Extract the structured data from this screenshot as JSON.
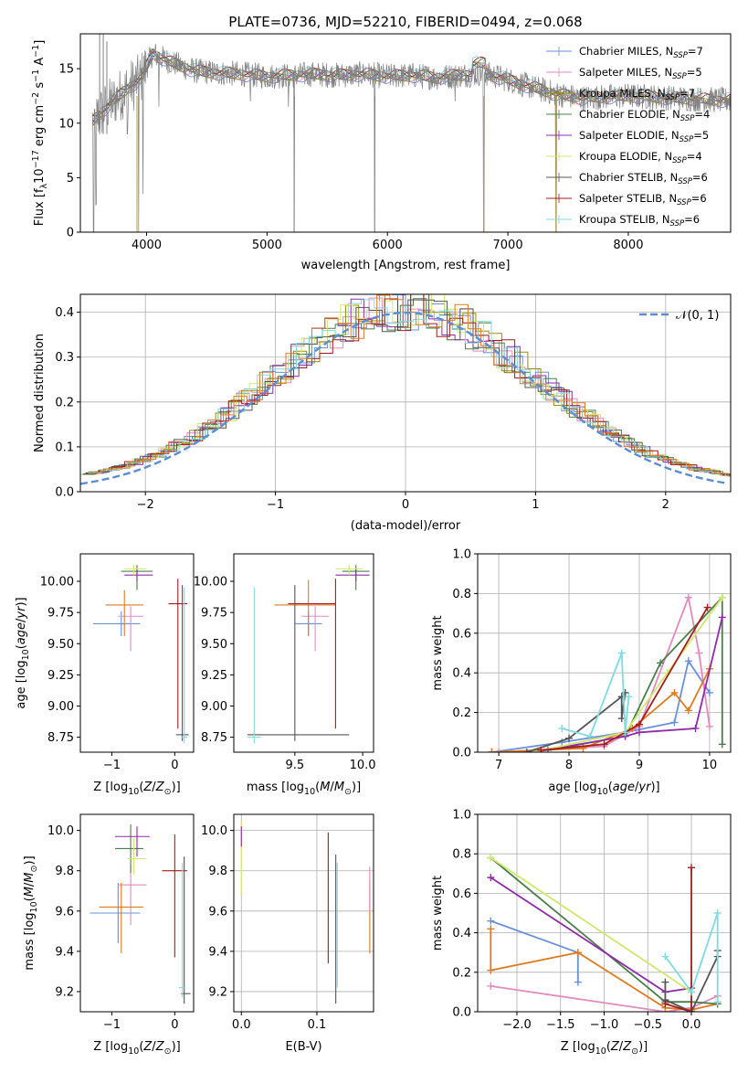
{
  "title": "PLATE=0736, MJD=52210, FIBERID=0494, z=0.068",
  "colors": {
    "Chabrier MILES": "#6a8fdc",
    "Salpeter MILES": "#e38ac0",
    "Kroupa MILES": "#9c8f00",
    "Chabrier ELODIE": "#4a7f4a",
    "Salpeter ELODIE": "#8f2aa8",
    "Kroupa ELODIE": "#cfe870",
    "Chabrier STELIB": "#555555",
    "Salpeter STELIB": "#a51c1c",
    "Kroupa STELIB": "#7fdbe0",
    "orange": "#e07a20",
    "data_gray": "#808080",
    "gaussian": "#5b8dd6"
  },
  "chart_data": [
    {
      "id": "spectrum",
      "type": "line",
      "xlabel": "wavelength [Angstrom, rest frame]",
      "ylabel_parts": [
        "Flux [f",
        "λ",
        "10",
        "−17",
        " erg cm",
        "−2",
        " s",
        "−1",
        " A",
        "−1",
        "]"
      ],
      "xlim": [
        3450,
        8850
      ],
      "ylim": [
        0,
        18.2
      ],
      "xticks": [
        4000,
        5000,
        6000,
        7000,
        8000
      ],
      "yticks": [
        0,
        5,
        10,
        15
      ],
      "legend": [
        {
          "label": "Chabrier MILES",
          "n": "7"
        },
        {
          "label": "Salpeter MILES",
          "n": "5"
        },
        {
          "label": "Kroupa MILES",
          "n": "7"
        },
        {
          "label": "Chabrier ELODIE",
          "n": "4"
        },
        {
          "label": "Salpeter ELODIE",
          "n": "5"
        },
        {
          "label": "Kroupa ELODIE",
          "n": "4"
        },
        {
          "label": "Chabrier STELIB",
          "n": "6"
        },
        {
          "label": "Salpeter STELIB",
          "n": "6"
        },
        {
          "label": "Kroupa STELIB",
          "n": "6"
        }
      ],
      "legend_placement": "upper right",
      "legend_nsub": "SSP",
      "data_profile": {
        "x": [
          3550,
          3700,
          3850,
          3950,
          4050,
          4200,
          4400,
          4600,
          4800,
          5000,
          5200,
          5400,
          5600,
          5800,
          6000,
          6200,
          6400,
          6600,
          6800,
          7000,
          7200,
          7400,
          7600,
          7800,
          8000,
          8200,
          8400,
          8600,
          8800
        ],
        "y": [
          10.2,
          11.8,
          13.3,
          14.0,
          16.4,
          15.6,
          14.8,
          14.6,
          14.5,
          14.3,
          14.4,
          14.5,
          14.4,
          14.5,
          14.3,
          14.4,
          14.2,
          14.4,
          14.6,
          14.0,
          13.3,
          12.7,
          12.3,
          12.4,
          12.5,
          12.4,
          12.3,
          12.2,
          12.1
        ]
      }
    },
    {
      "id": "residuals",
      "type": "histogram",
      "xlabel": "(data-model)/error",
      "ylabel": "Normed distribution",
      "xlim": [
        -2.5,
        2.5
      ],
      "ylim": [
        0,
        0.44
      ],
      "xticks": [
        -2,
        -1,
        0,
        1,
        2
      ],
      "yticks": [
        0.0,
        0.1,
        0.2,
        0.3,
        0.4
      ],
      "grid": true,
      "legend": [
        {
          "label": "𝒩(0, 1)"
        }
      ],
      "legend_placement": "upper right",
      "gaussian": {
        "mean": 0,
        "sigma": 1
      }
    },
    {
      "id": "age-vs-Z",
      "type": "scatter",
      "xlabel": "Z [log10(Z/Z⊙)]",
      "ylabel": "age  [log10(age/yr)]",
      "xlim": [
        -1.5,
        0.3
      ],
      "ylim": [
        8.63,
        10.22
      ],
      "xticks": [
        -1,
        0
      ],
      "yticks": [
        8.75,
        9.0,
        9.25,
        9.5,
        9.75,
        10.0
      ],
      "errorbars": [
        {
          "series": "Chabrier MILES",
          "x": -0.85,
          "xerr": [
            0.45,
            0.3
          ],
          "y": 9.66,
          "yerr": [
            0.1,
            0.1
          ]
        },
        {
          "series": "Salpeter MILES",
          "x": -0.7,
          "xerr": [
            0.2,
            0.2
          ],
          "y": 9.72,
          "yerr": [
            0.28,
            0.08
          ]
        },
        {
          "series": "orange",
          "x": -0.8,
          "xerr": [
            0.3,
            0.3
          ],
          "y": 9.81,
          "yerr": [
            0.25,
            0.12
          ]
        },
        {
          "series": "Chabrier ELODIE",
          "x": -0.6,
          "xerr": [
            0.25,
            0.25
          ],
          "y": 10.08,
          "yerr": [
            0.15,
            0.05
          ]
        },
        {
          "series": "Salpeter ELODIE",
          "x": -0.6,
          "xerr": [
            0.2,
            0.25
          ],
          "y": 10.05,
          "yerr": [
            0.05,
            0.05
          ]
        },
        {
          "series": "Kroupa ELODIE",
          "x": -0.65,
          "xerr": [
            0.15,
            0.2
          ],
          "y": 10.1,
          "yerr": [
            0.05,
            0.03
          ]
        },
        {
          "series": "Salpeter STELIB",
          "x": 0.05,
          "xerr": [
            0.15,
            0.15
          ],
          "y": 9.82,
          "yerr": [
            1.0,
            0.2
          ]
        },
        {
          "series": "Chabrier STELIB",
          "x": 0.12,
          "xerr": [
            0.1,
            0.1
          ],
          "y": 8.77,
          "yerr": [
            0.05,
            1.2
          ]
        },
        {
          "series": "Kroupa STELIB",
          "x": 0.15,
          "xerr": [
            0.05,
            0.05
          ],
          "y": 8.75,
          "yerr": [
            0.05,
            1.2
          ]
        }
      ]
    },
    {
      "id": "age-vs-mass",
      "type": "scatter",
      "xlabel": "mass [log10(M/M⊙)]",
      "ylabel": "",
      "xlim": [
        9.05,
        10.08
      ],
      "ylim": [
        8.63,
        10.22
      ],
      "xticks": [
        9.5,
        10.0
      ],
      "yticks": [
        8.75,
        9.0,
        9.25,
        9.5,
        9.75,
        10.0
      ],
      "errorbars": [
        {
          "series": "Chabrier MILES",
          "x": 9.6,
          "xerr": [
            0.1,
            0.1
          ],
          "y": 9.66,
          "yerr": [
            0.1,
            0.1
          ]
        },
        {
          "series": "Salpeter MILES",
          "x": 9.65,
          "xerr": [
            0.1,
            0.1
          ],
          "y": 9.72,
          "yerr": [
            0.28,
            0.08
          ]
        },
        {
          "series": "orange",
          "x": 9.6,
          "xerr": [
            0.25,
            0.2
          ],
          "y": 9.81,
          "yerr": [
            0.25,
            0.2
          ]
        },
        {
          "series": "Chabrier ELODIE",
          "x": 9.95,
          "xerr": [
            0.1,
            0.1
          ],
          "y": 10.08,
          "yerr": [
            0.15,
            0.05
          ]
        },
        {
          "series": "Salpeter ELODIE",
          "x": 9.95,
          "xerr": [
            0.15,
            0.1
          ],
          "y": 10.05,
          "yerr": [
            0.05,
            0.05
          ]
        },
        {
          "series": "Kroupa ELODIE",
          "x": 9.9,
          "xerr": [
            0.1,
            0.1
          ],
          "y": 10.1,
          "yerr": [
            0.05,
            0.03
          ]
        },
        {
          "series": "Salpeter STELIB",
          "x": 9.8,
          "xerr": [
            0.35,
            0.0
          ],
          "y": 9.82,
          "yerr": [
            1.0,
            0.2
          ]
        },
        {
          "series": "Chabrier STELIB",
          "x": 9.5,
          "xerr": [
            0.35,
            0.4
          ],
          "y": 8.77,
          "yerr": [
            0.05,
            1.2
          ]
        },
        {
          "series": "Kroupa STELIB",
          "x": 9.2,
          "xerr": [
            0.05,
            0.05
          ],
          "y": 8.75,
          "yerr": [
            0.05,
            1.2
          ]
        }
      ]
    },
    {
      "id": "weight-vs-age",
      "type": "line",
      "xlabel": "age  [log10(age/yr)]",
      "ylabel": "mass weight",
      "xlim": [
        6.7,
        10.3
      ],
      "ylim": [
        0,
        1.0
      ],
      "xticks": [
        7,
        8,
        9,
        10
      ],
      "yticks": [
        0.0,
        0.2,
        0.4,
        0.6,
        0.8,
        1.0
      ],
      "grid": true,
      "series": [
        {
          "name": "Chabrier MILES",
          "x": [
            6.9,
            7.9,
            8.8,
            9.5,
            9.7,
            10.0
          ],
          "y": [
            0.0,
            0.05,
            0.1,
            0.15,
            0.46,
            0.3
          ]
        },
        {
          "name": "Salpeter MILES",
          "x": [
            7.0,
            8.5,
            9.0,
            9.7,
            9.85,
            10.0
          ],
          "y": [
            0.0,
            0.03,
            0.13,
            0.78,
            0.5,
            0.13
          ]
        },
        {
          "name": "orange",
          "x": [
            6.9,
            8.2,
            8.9,
            9.5,
            9.7,
            10.0
          ],
          "y": [
            0.0,
            0.02,
            0.12,
            0.3,
            0.21,
            0.42
          ]
        },
        {
          "name": "Chabrier ELODIE",
          "x": [
            7.7,
            8.8,
            9.3,
            10.18,
            10.18
          ],
          "y": [
            0.01,
            0.08,
            0.45,
            0.78,
            0.04
          ]
        },
        {
          "name": "Salpeter ELODIE",
          "x": [
            7.5,
            8.8,
            9.0,
            9.8,
            10.18
          ],
          "y": [
            0.0,
            0.08,
            0.1,
            0.12,
            0.68
          ]
        },
        {
          "name": "Kroupa ELODIE",
          "x": [
            7.5,
            8.8,
            9.4,
            10.18
          ],
          "y": [
            0.0,
            0.1,
            0.4,
            0.78
          ]
        },
        {
          "name": "Chabrier STELIB",
          "x": [
            7.4,
            8.0,
            8.75,
            8.75,
            8.8
          ],
          "y": [
            0.0,
            0.07,
            0.28,
            0.17,
            0.3
          ]
        },
        {
          "name": "Salpeter STELIB",
          "x": [
            7.6,
            8.5,
            9.0,
            9.97
          ],
          "y": [
            0.01,
            0.04,
            0.14,
            0.73
          ]
        },
        {
          "name": "Kroupa STELIB",
          "x": [
            7.9,
            8.3,
            8.75,
            8.8,
            8.85
          ],
          "y": [
            0.12,
            0.08,
            0.5,
            0.1,
            0.28
          ]
        }
      ]
    },
    {
      "id": "mass-vs-Z",
      "type": "scatter",
      "xlabel": "Z [log10(Z/Z⊙)]",
      "ylabel": "mass [log10(M/M⊙)]",
      "xlim": [
        -1.5,
        0.3
      ],
      "ylim": [
        9.1,
        10.08
      ],
      "xticks": [
        -1,
        0
      ],
      "yticks": [
        9.2,
        9.4,
        9.6,
        9.8,
        10.0
      ],
      "errorbars": [
        {
          "series": "Chabrier MILES",
          "x": -0.9,
          "xerr": [
            0.45,
            0.35
          ],
          "y": 9.59,
          "yerr": [
            0.15,
            0.15
          ]
        },
        {
          "series": "Salpeter MILES",
          "x": -0.7,
          "xerr": [
            0.2,
            0.25
          ],
          "y": 9.73,
          "yerr": [
            0.2,
            0.1
          ]
        },
        {
          "series": "orange",
          "x": -0.85,
          "xerr": [
            0.35,
            0.35
          ],
          "y": 9.62,
          "yerr": [
            0.23,
            0.12
          ]
        },
        {
          "series": "Chabrier ELODIE",
          "x": -0.7,
          "xerr": [
            0.25,
            0.2
          ],
          "y": 9.91,
          "yerr": [
            0.12,
            0.12
          ]
        },
        {
          "series": "Salpeter ELODIE",
          "x": -0.6,
          "xerr": [
            0.35,
            0.2
          ],
          "y": 9.97,
          "yerr": [
            0.1,
            0.05
          ]
        },
        {
          "series": "Kroupa ELODIE",
          "x": -0.65,
          "xerr": [
            0.1,
            0.2
          ],
          "y": 9.86,
          "yerr": [
            0.08,
            0.1
          ]
        },
        {
          "series": "Salpeter STELIB",
          "x": 0.0,
          "xerr": [
            0.2,
            0.2
          ],
          "y": 9.8,
          "yerr": [
            0.43,
            0.18
          ]
        },
        {
          "series": "Chabrier STELIB",
          "x": 0.15,
          "xerr": [
            0.05,
            0.1
          ],
          "y": 9.19,
          "yerr": [
            0.05,
            0.68
          ]
        },
        {
          "series": "Kroupa STELIB",
          "x": 0.12,
          "xerr": [
            0.05,
            0.05
          ],
          "y": 9.22,
          "yerr": [
            0.05,
            0.62
          ]
        }
      ]
    },
    {
      "id": "mass-vs-EBV",
      "type": "scatter",
      "xlabel": "E(B-V)",
      "ylabel": "",
      "xlim": [
        -0.01,
        0.175
      ],
      "ylim": [
        9.1,
        10.08
      ],
      "xticks": [
        0.0,
        0.1
      ],
      "yticks": [
        9.2,
        9.4,
        9.6,
        9.8,
        10.0
      ],
      "grid": true,
      "errorbars": [
        {
          "series": "Kroupa ELODIE",
          "x": 0.0,
          "y": 9.86,
          "yerr": [
            0.18,
            0.18
          ]
        },
        {
          "series": "Salpeter ELODIE",
          "x": 0.0,
          "y": 9.97,
          "yerr": [
            0.05,
            0.05
          ]
        },
        {
          "series": "Salpeter STELIB",
          "x": 0.115,
          "y": 9.72,
          "yerr": [
            0.38,
            0.27
          ]
        },
        {
          "series": "Chabrier STELIB",
          "x": 0.125,
          "y": 9.52,
          "yerr": [
            0.38,
            0.36
          ]
        },
        {
          "series": "Kroupa STELIB",
          "x": 0.127,
          "y": 9.52,
          "yerr": [
            0.3,
            0.32
          ]
        },
        {
          "series": "orange",
          "x": 0.17,
          "y": 9.57,
          "yerr": [
            0.18,
            0.18
          ]
        },
        {
          "series": "Salpeter MILES",
          "x": 0.17,
          "y": 9.7,
          "yerr": [
            0.1,
            0.12
          ]
        }
      ]
    },
    {
      "id": "weight-vs-Z",
      "type": "line",
      "xlabel": "Z [log10(Z/Z⊙)]",
      "ylabel": "mass weight",
      "xlim": [
        -2.45,
        0.45
      ],
      "ylim": [
        0,
        1.0
      ],
      "xticks": [
        -2.0,
        -1.5,
        -1.0,
        -0.5,
        0.0
      ],
      "yticks": [
        0.0,
        0.2,
        0.4,
        0.6,
        0.8,
        1.0
      ],
      "grid": true,
      "series": [
        {
          "name": "Chabrier MILES",
          "x": [
            -2.3,
            -1.3,
            -1.3
          ],
          "y": [
            0.46,
            0.3,
            0.15
          ]
        },
        {
          "name": "Salpeter MILES",
          "x": [
            -2.3,
            -0.3,
            0.0,
            0.3
          ],
          "y": [
            0.13,
            0.0,
            0.02,
            0.08
          ]
        },
        {
          "name": "orange",
          "x": [
            -2.3,
            -2.3,
            -1.3,
            -0.3,
            0.0,
            0.3
          ],
          "y": [
            0.42,
            0.21,
            0.3,
            0.02,
            0.01,
            0.04
          ]
        },
        {
          "name": "Chabrier ELODIE",
          "x": [
            -2.3,
            -0.3,
            0.0,
            0.3
          ],
          "y": [
            0.78,
            0.05,
            0.05,
            0.04
          ]
        },
        {
          "name": "Salpeter ELODIE",
          "x": [
            -2.3,
            -0.3,
            0.0
          ],
          "y": [
            0.68,
            0.1,
            0.12
          ]
        },
        {
          "name": "Kroupa ELODIE",
          "x": [
            -2.3,
            0.0
          ],
          "y": [
            0.78,
            0.1
          ]
        },
        {
          "name": "Chabrier STELIB",
          "x": [
            -0.3,
            -0.3,
            0.0,
            0.3,
            0.3
          ],
          "y": [
            0.15,
            0.06,
            0.0,
            0.28,
            0.31
          ]
        },
        {
          "name": "Salpeter STELIB",
          "x": [
            -0.3,
            0.0,
            0.0
          ],
          "y": [
            0.04,
            0.0,
            0.73
          ]
        },
        {
          "name": "Kroupa STELIB",
          "x": [
            -0.3,
            0.0,
            0.3,
            0.3
          ],
          "y": [
            0.28,
            0.1,
            0.5,
            0.05
          ]
        }
      ]
    }
  ]
}
